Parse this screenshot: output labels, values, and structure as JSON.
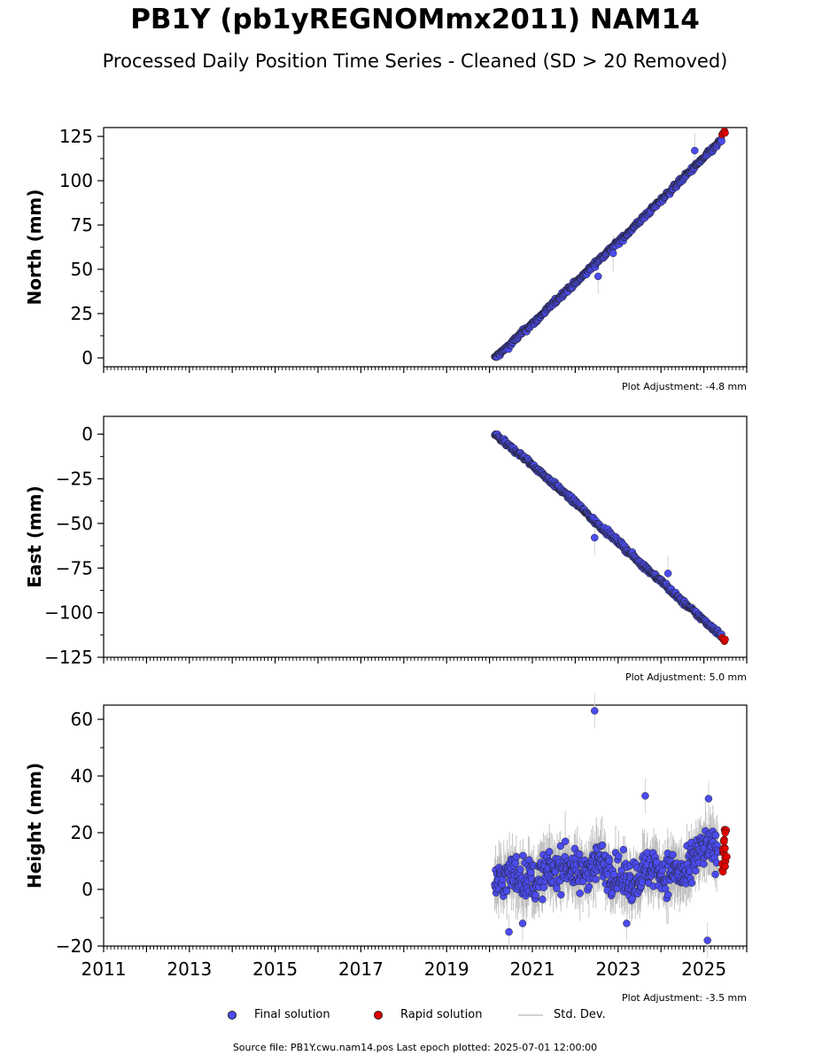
{
  "header": {
    "title": "PB1Y (pb1yREGNOMmx2011) NAM14",
    "subtitle": "Processed Daily Position Time Series - Cleaned (SD > 20 Removed)"
  },
  "legend": {
    "final_label": "Final solution",
    "rapid_label": "Rapid solution",
    "std_label": "Std. Dev."
  },
  "footer": {
    "source": "Source file: PB1Y.cwu.nam14.pos  Last epoch plotted: 2025-07-01 12:00:00"
  },
  "colors": {
    "final": "#4b4bf0",
    "rapid": "#e00000",
    "std": "#d3d3d3",
    "edge": "#222222"
  },
  "chart_data": [
    {
      "type": "scatter",
      "ylabel": "North (mm)",
      "xlim": [
        "2011-01-01",
        "2026-01-01"
      ],
      "ylim": [
        -5,
        130
      ],
      "yticks": [
        0,
        25,
        50,
        75,
        100,
        125
      ],
      "xtick_labels_shown": false,
      "annotation": "Plot Adjustment: -4.8 mm",
      "series": [
        {
          "name": "Final solution",
          "x": [
            "2020-02-15",
            "2020-06-01",
            "2020-10-01",
            "2021-02-01",
            "2021-06-01",
            "2021-10-01",
            "2022-02-01",
            "2022-06-01",
            "2022-10-01",
            "2023-02-01",
            "2023-06-01",
            "2023-10-01",
            "2024-02-01",
            "2024-06-01",
            "2024-10-01",
            "2025-02-01",
            "2025-06-01"
          ],
          "y": [
            0,
            6,
            14,
            21,
            29,
            37,
            44,
            52,
            60,
            67,
            75,
            83,
            91,
            99,
            107,
            115,
            123
          ]
        },
        {
          "name": "Rapid solution",
          "x": [
            "2025-06-05",
            "2025-06-15",
            "2025-06-25",
            "2025-07-01"
          ],
          "y": [
            126,
            127,
            128,
            127
          ]
        }
      ],
      "outliers": [
        {
          "x": "2022-07-15",
          "y": 46
        },
        {
          "x": "2022-11-20",
          "y": 59
        },
        {
          "x": "2024-10-15",
          "y": 117
        }
      ]
    },
    {
      "type": "scatter",
      "ylabel": "East (mm)",
      "xlim": [
        "2011-01-01",
        "2026-01-01"
      ],
      "ylim": [
        -125,
        10
      ],
      "yticks": [
        0,
        -25,
        -50,
        -75,
        -100,
        -125
      ],
      "xtick_labels_shown": false,
      "annotation": "Plot Adjustment: 5.0 mm",
      "series": [
        {
          "name": "Final solution",
          "x": [
            "2020-02-15",
            "2020-06-01",
            "2020-10-01",
            "2021-02-01",
            "2021-06-01",
            "2021-10-01",
            "2022-02-01",
            "2022-06-01",
            "2022-10-01",
            "2023-02-01",
            "2023-06-01",
            "2023-10-01",
            "2024-02-01",
            "2024-06-01",
            "2024-10-01",
            "2025-02-01",
            "2025-06-01"
          ],
          "y": [
            0,
            -6,
            -12,
            -19,
            -26,
            -33,
            -40,
            -48,
            -55,
            -62,
            -70,
            -77,
            -84,
            -92,
            -99,
            -106,
            -113
          ]
        },
        {
          "name": "Rapid solution",
          "x": [
            "2025-06-05",
            "2025-06-15",
            "2025-06-25",
            "2025-07-01"
          ],
          "y": [
            -114,
            -115,
            -116,
            -115
          ]
        }
      ],
      "outliers": [
        {
          "x": "2022-06-15",
          "y": -58
        },
        {
          "x": "2024-03-01",
          "y": -78
        }
      ]
    },
    {
      "type": "scatter",
      "ylabel": "Height (mm)",
      "xlim": [
        "2011-01-01",
        "2026-01-01"
      ],
      "ylim": [
        -20,
        65
      ],
      "yticks": [
        -20,
        0,
        20,
        40,
        60
      ],
      "xtick_labels": [
        "2011",
        "2013",
        "2015",
        "2017",
        "2019",
        "2021",
        "2023",
        "2025"
      ],
      "annotation": "Plot Adjustment: -3.5 mm",
      "series": [
        {
          "name": "Final solution",
          "x": [
            "2020-02-15",
            "2020-05-01",
            "2020-08-01",
            "2020-11-01",
            "2021-02-01",
            "2021-05-01",
            "2021-08-01",
            "2021-11-01",
            "2022-02-01",
            "2022-05-01",
            "2022-08-01",
            "2022-11-01",
            "2023-02-01",
            "2023-05-01",
            "2023-08-01",
            "2023-11-01",
            "2024-02-01",
            "2024-05-01",
            "2024-08-01",
            "2024-11-01",
            "2025-02-01",
            "2025-05-01"
          ],
          "y": [
            2,
            4,
            6,
            4,
            3,
            6,
            7,
            9,
            5,
            8,
            10,
            6,
            4,
            3,
            6,
            8,
            5,
            7,
            4,
            12,
            15,
            13
          ]
        },
        {
          "name": "Rapid solution",
          "x": [
            "2025-06-05",
            "2025-06-12",
            "2025-06-19",
            "2025-06-26",
            "2025-07-01"
          ],
          "y": [
            9,
            13,
            17,
            21,
            11
          ]
        }
      ],
      "outliers": [
        {
          "x": "2022-06-15",
          "y": 63
        },
        {
          "x": "2023-08-20",
          "y": 33
        },
        {
          "x": "2025-02-10",
          "y": 32
        },
        {
          "x": "2025-02-01",
          "y": -18
        },
        {
          "x": "2020-06-15",
          "y": -15
        },
        {
          "x": "2020-10-10",
          "y": -12
        },
        {
          "x": "2023-03-15",
          "y": -12
        }
      ]
    }
  ]
}
